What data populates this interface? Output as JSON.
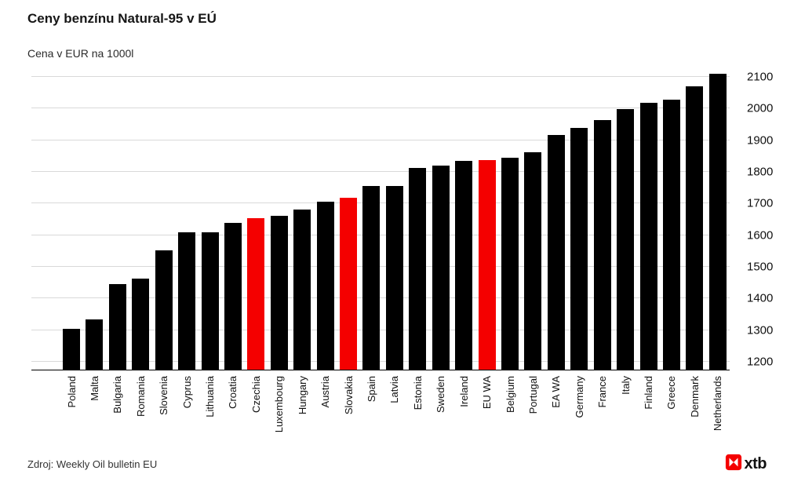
{
  "title": "Ceny benzínu Natural-95 v EÚ",
  "subtitle": "Cena v EUR na 1000l",
  "source": "Zdroj: Weekly Oil bulletin EU",
  "logo_text": "xtb",
  "colors": {
    "bar": "#000000",
    "highlight": "#f40000",
    "grid": "#d9d9d9",
    "axis": "#000000",
    "logo_red": "#f40000"
  },
  "chart_data": {
    "type": "bar",
    "title": "Ceny benzínu Natural-95 v EÚ",
    "subtitle": "Cena v EUR na 1000l",
    "xlabel": "",
    "ylabel": "EUR na 1000l",
    "categories": [
      "Poland",
      "Malta",
      "Bulgaria",
      "Romania",
      "Slovenia",
      "Cyprus",
      "Lithuania",
      "Croatia",
      "Czechia",
      "Luxembourg",
      "Hungary",
      "Austria",
      "Slovakia",
      "Spain",
      "Latvia",
      "Estonia",
      "Sweden",
      "Ireland",
      "EU WA",
      "Belgium",
      "Portugal",
      "EA WA",
      "Germany",
      "France",
      "Italy",
      "Finland",
      "Greece",
      "Denmark",
      "Netherlands"
    ],
    "values": [
      1305,
      1335,
      1445,
      1462,
      1553,
      1610,
      1608,
      1640,
      1654,
      1661,
      1681,
      1707,
      1718,
      1756,
      1755,
      1812,
      1821,
      1836,
      1838,
      1844,
      1861,
      1916,
      1938,
      1963,
      1998,
      2018,
      2028,
      2070,
      2110
    ],
    "highlighted": [
      "Czechia",
      "Slovakia",
      "EU WA"
    ],
    "yticks": [
      1200,
      1300,
      1400,
      1500,
      1600,
      1700,
      1800,
      1900,
      2000,
      2100
    ],
    "ylim": [
      1175,
      2115
    ],
    "grid": true,
    "ytick_side": "right",
    "xlabel_rotation": 90,
    "legend": false
  }
}
